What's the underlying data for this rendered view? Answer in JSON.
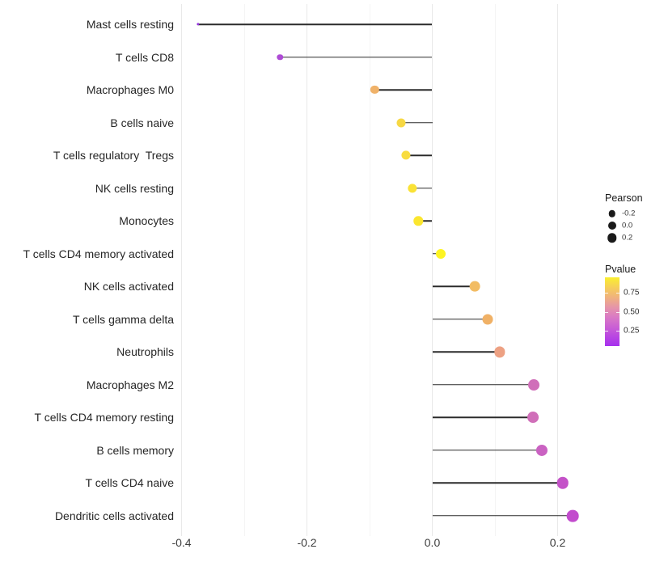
{
  "chart_data": {
    "type": "lollipop",
    "title": "",
    "xlabel": "",
    "ylabel": "",
    "x_tick_labels": [
      "-0.4",
      "-0.2",
      "0.0",
      "0.2"
    ],
    "x_tick_values": [
      -0.4,
      -0.2,
      0.0,
      0.2
    ],
    "x_minor_values": [
      -0.3,
      -0.1,
      0.1
    ],
    "xlim": [
      -0.41,
      0.25
    ],
    "grid": "vertical only, light gray, white background",
    "stem_baseline": 0.0,
    "size_encoding": "Pearson correlation",
    "color_encoding": "Pvalue",
    "rows": [
      {
        "label": "Mast cells resting",
        "pearson": -0.374,
        "color": "#9232DC"
      },
      {
        "label": "T cells CD8",
        "pearson": -0.243,
        "color": "#AE4BD5"
      },
      {
        "label": "Macrophages M0",
        "pearson": -0.092,
        "color": "#F0B269"
      },
      {
        "label": "B cells naive",
        "pearson": -0.05,
        "color": "#F7D843"
      },
      {
        "label": "T cells regulatory  Tregs",
        "pearson": -0.042,
        "color": "#F8DC3F"
      },
      {
        "label": "NK cells resting",
        "pearson": -0.032,
        "color": "#FAE236"
      },
      {
        "label": "Monocytes",
        "pearson": -0.022,
        "color": "#FBE62F"
      },
      {
        "label": "T cells CD4 memory activated",
        "pearson": 0.013,
        "color": "#FDF423"
      },
      {
        "label": "NK cells activated",
        "pearson": 0.068,
        "color": "#F2BC63"
      },
      {
        "label": "T cells gamma delta",
        "pearson": 0.088,
        "color": "#F0B166"
      },
      {
        "label": "Neutrophils",
        "pearson": 0.108,
        "color": "#EDA183"
      },
      {
        "label": "Macrophages M2",
        "pearson": 0.162,
        "color": "#D06FB9"
      },
      {
        "label": "T cells CD4 memory resting",
        "pearson": 0.161,
        "color": "#D06FB9"
      },
      {
        "label": "B cells memory",
        "pearson": 0.175,
        "color": "#CA62C2"
      },
      {
        "label": "T cells CD4 naive",
        "pearson": 0.208,
        "color": "#C452C8"
      },
      {
        "label": "Dendritic cells activated",
        "pearson": 0.224,
        "color": "#C24BCD"
      }
    ],
    "legend": {
      "size": {
        "title": "Pearson",
        "entries": [
          {
            "label": "-0.2",
            "value": -0.2
          },
          {
            "label": "0.0",
            "value": 0.0
          },
          {
            "label": "0.2",
            "value": 0.2
          }
        ]
      },
      "color": {
        "title": "Pvalue",
        "ticks": [
          "0.75",
          "0.50",
          "0.25"
        ],
        "gradient_top_to_bottom": [
          "#FAEF2F",
          "#F6CF58",
          "#F0B37D",
          "#E696A7",
          "#DA7BC4",
          "#CB62D3",
          "#B947E1",
          "#A631EE"
        ]
      }
    },
    "colors": {
      "stem": "#2b2b2b",
      "grid_major": "#e9e9e9",
      "grid_minor": "#f4f4f4",
      "axis_text": "#3d3d3d",
      "label_text": "#262626"
    }
  }
}
